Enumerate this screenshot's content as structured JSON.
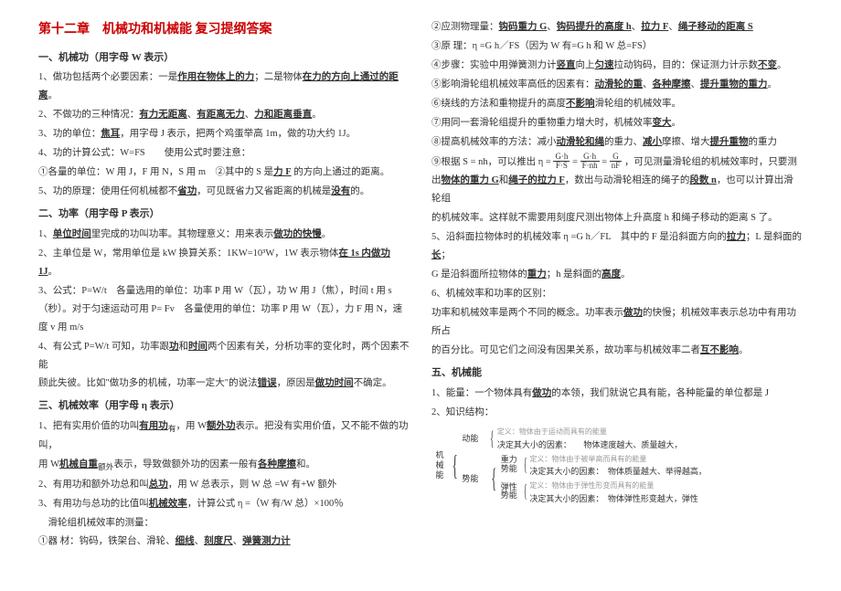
{
  "title": "第十二章　机械功和机械能 复习提纲答案",
  "col1": {
    "h1": "一、机械功（用字母 W 表示）",
    "lines": [
      {
        "pre": "1、做功包括两个必要因素：一是",
        "u1": "作用在物体上的力",
        "mid": "；二是物体",
        "u2": "在力的方向上通过的距离",
        "post": "。"
      },
      {
        "pre": "2、不做功的三种情况：",
        "u1": "有力无距离",
        "mid": "、",
        "u2": "有距离无力",
        "mid2": "、",
        "u3": "力和距离垂直",
        "post": "。"
      },
      {
        "pre": "3、功的单位：",
        "u1": "焦耳",
        "post": "，用字母 J 表示，把两个鸡蛋举高 1m，做的功大约 1J。"
      },
      {
        "pre": "4、功的计算公式：W=FS　　使用公式时要注意：",
        "post": ""
      },
      {
        "pre": "①各量的单位：W 用 J，F 用 N，S 用 m　②其中的 S 是",
        "u1": "力 F",
        "post": " 的方向上通过的距离。"
      },
      {
        "pre": "5、功的原理：使用任何机械都不",
        "u1": "省功",
        "mid": "，可见既省力又省距离的机械是",
        "u2": "没有",
        "post": "的。"
      }
    ],
    "h2": "二、功率（用字母 P 表示）",
    "lines2": [
      {
        "pre": "1、",
        "u1": "单位时间",
        "mid": "里完成的功叫功率。其物理意义：用来表示",
        "u2": "做功的快慢",
        "post": "。"
      },
      {
        "pre": "2、主单位是 W，常用单位是 kW 换算关系：1KW=10³W，1W 表示物体",
        "u1": "在 1s 内做功 1J",
        "post": "。"
      },
      {
        "pre": "3、公式：P=W/t　各量选用的单位：功率 P 用 W（瓦），功 W 用 J（焦），时间 t 用 s（秒）。对于匀速运动可用 P= Fv　各量使用的单位：功率 P 用 W（瓦），力 F 用 N，速度 v 用 m/s",
        "post": ""
      },
      {
        "pre": "4、有公式 P=W/t 可知，功率跟",
        "u1": "功",
        "mid": "和",
        "u2": "时间",
        "post": "两个因素有关，分析功率的变化时，两个因素不能"
      },
      {
        "pre": "顾此失彼。比如\"做功多的机械，功率一定大\"的说法",
        "u1": "错误",
        "mid": "，原因是",
        "u2": "做功时间",
        "post": "不确定。"
      }
    ],
    "h3": "三、机械效率（用字母 η 表示）",
    "lines3": [
      {
        "pre": "1、把有实用价值的功叫",
        "u1": "有用功",
        "mid": "，用 W",
        "sub": "有",
        "mid2": "表示。把没有实用价值，又不能不做的功叫",
        "u2": "额外功",
        "post": "，"
      },
      {
        "pre": "用 W",
        "sub": "额外",
        "mid": "表示，导致做额外功的因素一般有",
        "u1": "机械自重",
        "mid2": "和",
        "u2": "各种摩擦",
        "post": "。"
      },
      {
        "pre": "2、有用功和额外功总和叫",
        "u1": "总功",
        "post": "，用 W 总表示，则 W 总 =W 有+W 额外"
      },
      {
        "pre": "3、有用功与总功的比值叫",
        "u1": "机械效率",
        "post": "，计算公式 η =（W 有/W 总）×100％"
      },
      {
        "pre": "　滑轮组机械效率的测量：",
        "post": ""
      },
      {
        "pre": "①器 材：钩码，铁架台、滑轮、",
        "u1": "细线",
        "mid": "、",
        "u2": "刻度尺",
        "mid2": "、",
        "u3": "弹簧测力计",
        "post": ""
      }
    ]
  },
  "col2": {
    "lines": [
      {
        "pre": "②应测物理量：",
        "u1": "钩码重力 G",
        "mid": "、",
        "u2": "钩码提升的高度 h",
        "mid2": "、",
        "u3": "拉力 F",
        "mid3": "、",
        "u4": "绳子移动的距离 S",
        "post": ""
      },
      {
        "pre": "③原 理：η =G h／FS（因为 W 有=G h 和 W 总=FS）",
        "post": ""
      },
      {
        "pre": "④步骤：实验中用弹簧测力计",
        "u1": "竖直",
        "mid": "向上",
        "u2": "匀速",
        "mid2": "拉动钩码，目的：保证测力计示数",
        "u3": "不变",
        "post": "。"
      },
      {
        "pre": "⑤影响滑轮组机械效率高低的因素有：",
        "u1": "动滑轮的重",
        "mid": "、",
        "u2": "各种摩擦",
        "mid2": "、",
        "u3": "提升重物的重力",
        "post": "。"
      },
      {
        "pre": "⑥绕线的方法和重物提升的高度",
        "u1": "不影响",
        "post": "滑轮组的机械效率。"
      },
      {
        "pre": "⑦用同一套滑轮组提升的重物重力增大时，机械效率",
        "u1": "变大",
        "post": "。"
      },
      {
        "pre": "⑧提高机械效率的方法：减小",
        "u1": "动滑轮和绳",
        "mid": "的重力、",
        "u2": "减小",
        "mid2": "摩擦、增大",
        "u3": "提升重物",
        "post": "的重力"
      }
    ],
    "formula": {
      "pre": "⑨根据 S = nh，可以推出 η = ",
      "f1n": "G·h",
      "f1d": "F·S",
      "eq1": " = ",
      "f2n": "G·h",
      "f2d": "F·nh",
      "eq2": " = ",
      "f3n": "G",
      "f3d": "nF",
      "post": "，可见测量滑轮组的机械效率时，只要测"
    },
    "lines2": [
      {
        "pre": "出",
        "u1": "物体的重力 G",
        "mid": "和",
        "u2": "绳子的拉力 F",
        "mid2": "，数出与动滑轮相连的绳子的",
        "u3": "段数 n",
        "post": "，也可以计算出滑轮组"
      },
      {
        "pre": "的机械效率。这样就不需要用刻度尺测出物体上升高度 h 和绳子移动的距离 S 了。",
        "post": ""
      },
      {
        "pre": "5、沿斜面拉物体时的机械效率 η =G h／FL　其中的 F 是沿斜面方向的",
        "u1": "拉力",
        "mid": "；L 是斜面的",
        "u2": "长",
        "post": "；"
      },
      {
        "pre": "G 是沿斜面所拉物体的",
        "u1": "重力",
        "mid": "；h 是斜面的",
        "u2": "高度",
        "post": "。"
      },
      {
        "pre": "6、机械效率和功率的区别：",
        "post": ""
      },
      {
        "pre": "功率和机械效率是两个不同的概念。功率表示",
        "u1": "做功",
        "post": "的快慢；机械效率表示总功中有用功所占"
      },
      {
        "pre": "的百分比。可见它们之间没有因果关系，故功率与机械效率二者",
        "u1": "互不影响",
        "post": "。"
      }
    ],
    "h2": "五、机械能",
    "lines3": [
      {
        "pre": "1、能量：一个物体具有",
        "u1": "做功",
        "post": "的本领，我们就说它具有能，各种能量的单位都是 J"
      },
      {
        "pre": "2、知识结构：",
        "post": ""
      }
    ],
    "tree": {
      "root": "机械能",
      "b1": "动能",
      "b1l1": "定义：物体由于运动而具有的能量",
      "b1l2": "决定其大小的因素：　　物体速度越大、质量越大，",
      "b2": "势能",
      "b2a": "重力势能",
      "b2al1": "定义：物体由于被举高而具有的能量",
      "b2al2": "决定其大小的因素：　物体质量越大、举得越高，",
      "b2b": "弹性势能",
      "b2bl1": "定义：物体由于弹性形变而具有的能量",
      "b2bl2": "决定其大小的因素：　物体弹性形变越大，弹性"
    }
  }
}
